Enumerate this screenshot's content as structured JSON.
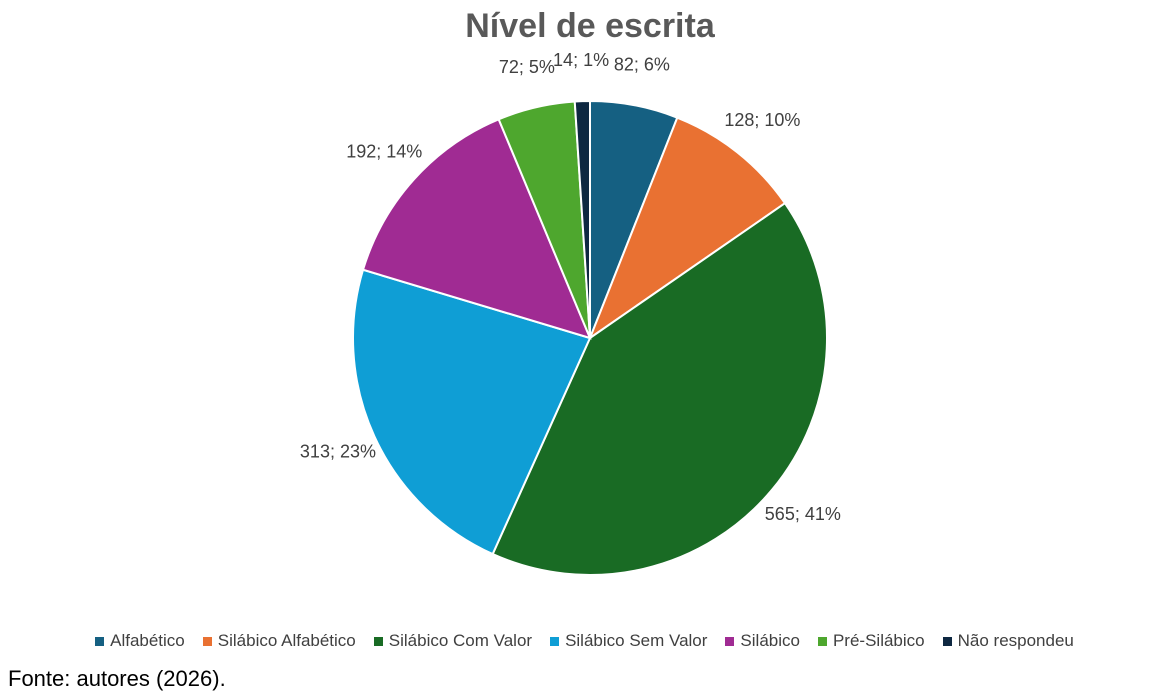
{
  "chart_data": {
    "type": "pie",
    "title": "Nível de escrita",
    "categories": [
      "Alfabético",
      "Silábico Alfabético",
      "Silábico Com Valor",
      "Silábico Sem Valor",
      "Silábico",
      "Pré-Silábico",
      "Não respondeu"
    ],
    "values": [
      82,
      128,
      565,
      313,
      192,
      72,
      14
    ],
    "value_labels": [
      "82; 6%",
      "128; 10%",
      "565; 41%",
      "313; 23%",
      "192; 14%",
      "72; 5%",
      "14; 1%"
    ],
    "colors": [
      "#156082",
      "#e97132",
      "#196b24",
      "#0f9ed5",
      "#a02b93",
      "#4ea72e",
      "#0e2841"
    ],
    "legend": "bottom"
  },
  "source": "Fonte: autores (2026)."
}
